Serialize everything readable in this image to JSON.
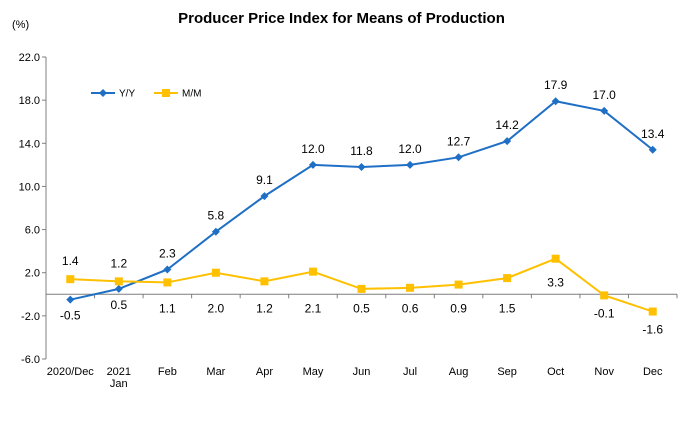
{
  "chart_data": {
    "type": "line",
    "title": "Producer Price Index for Means of Production",
    "unit": "(%)",
    "categories": [
      [
        "2020/Dec"
      ],
      [
        "2021",
        "Jan"
      ],
      [
        "Feb"
      ],
      [
        "Mar"
      ],
      [
        "Apr"
      ],
      [
        "May"
      ],
      [
        "Jun"
      ],
      [
        "Jul"
      ],
      [
        "Aug"
      ],
      [
        "Sep"
      ],
      [
        "Oct"
      ],
      [
        "Nov"
      ],
      [
        "Dec"
      ]
    ],
    "ylim": [
      -6.0,
      22.0
    ],
    "yticks": [
      "22.0",
      "18.0",
      "14.0",
      "10.0",
      "6.0",
      "2.0",
      "-2.0",
      "-6.0"
    ],
    "ytick_values": [
      22,
      18,
      14,
      10,
      6,
      2,
      -2,
      -6
    ],
    "grid": false,
    "legend": "top-left",
    "series": [
      {
        "name": "Y/Y",
        "color": "#1f6fc5",
        "marker": "diamond",
        "values": [
          -0.5,
          0.5,
          2.3,
          5.8,
          9.1,
          12.0,
          11.8,
          12.0,
          12.7,
          14.2,
          17.9,
          17.0,
          13.4
        ],
        "labels": [
          "-0.5",
          "0.5",
          "2.3",
          "5.8",
          "9.1",
          "12.0",
          "11.8",
          "12.0",
          "12.7",
          "14.2",
          "17.9",
          "17.0",
          "13.4"
        ]
      },
      {
        "name": "M/M",
        "color": "#ffc000",
        "marker": "square",
        "values": [
          1.4,
          1.2,
          1.1,
          2.0,
          1.2,
          2.1,
          0.5,
          0.6,
          0.9,
          1.5,
          3.3,
          -0.1,
          -1.6
        ],
        "labels": [
          "1.4",
          "1.2",
          "1.1",
          "2.0",
          "1.2",
          "2.1",
          "0.5",
          "0.6",
          "0.9",
          "1.5",
          "3.3",
          "-0.1",
          "-1.6"
        ]
      }
    ]
  }
}
